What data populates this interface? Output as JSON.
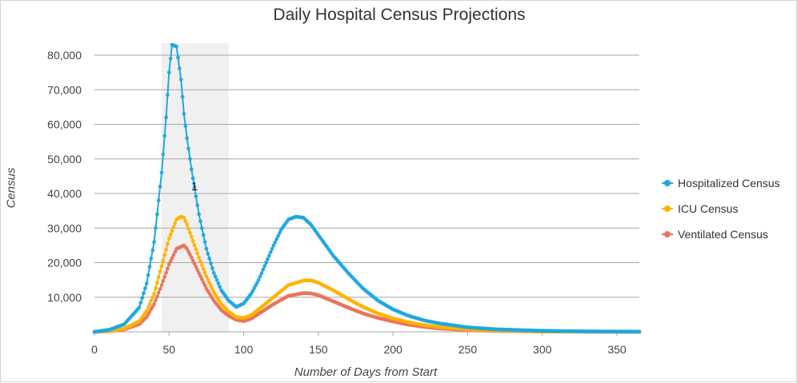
{
  "chart_data": {
    "type": "line",
    "title": "Daily Hospital Census Projections",
    "xlabel": "Number of Days from Start",
    "ylabel": "Census",
    "xlim": [
      0,
      365
    ],
    "ylim": [
      0,
      80000
    ],
    "x_ticks": [
      "0",
      "50",
      "100",
      "150",
      "200",
      "250",
      "300",
      "350"
    ],
    "y_ticks": [
      "10,000",
      "20,000",
      "30,000",
      "40,000",
      "50,000",
      "60,000",
      "70,000",
      "80,000"
    ],
    "grid": "horizontal",
    "legend_position": "right",
    "highlight": {
      "x_range": [
        45,
        90
      ],
      "label": "1"
    },
    "series": [
      {
        "name": "Hospitalized Census",
        "color": "#1ea7de",
        "x": [
          0,
          10,
          20,
          30,
          35,
          40,
          45,
          48,
          50,
          52,
          55,
          58,
          60,
          62,
          65,
          70,
          75,
          80,
          85,
          90,
          95,
          100,
          105,
          110,
          115,
          120,
          125,
          130,
          135,
          140,
          145,
          150,
          160,
          170,
          180,
          190,
          200,
          210,
          220,
          230,
          250,
          270,
          300,
          330,
          365
        ],
        "y": [
          0,
          600,
          2200,
          7000,
          14000,
          26000,
          46000,
          62000,
          75000,
          83000,
          82500,
          73000,
          63000,
          56000,
          47000,
          34000,
          24000,
          17000,
          12000,
          9000,
          7200,
          8200,
          11000,
          15000,
          20000,
          25000,
          29500,
          32500,
          33300,
          33000,
          31000,
          28000,
          22000,
          17000,
          12500,
          9000,
          6500,
          4700,
          3400,
          2500,
          1300,
          700,
          300,
          120,
          50
        ]
      },
      {
        "name": "ICU Census",
        "color": "#ffb300",
        "x": [
          0,
          10,
          20,
          30,
          35,
          40,
          45,
          50,
          55,
          58,
          60,
          62,
          65,
          70,
          75,
          80,
          85,
          90,
          95,
          100,
          105,
          110,
          120,
          130,
          140,
          145,
          150,
          160,
          170,
          180,
          190,
          200,
          210,
          220,
          230,
          250,
          270,
          300,
          330,
          365
        ],
        "y": [
          0,
          250,
          900,
          3000,
          6000,
          11000,
          19000,
          27000,
          32500,
          33300,
          33000,
          31000,
          27500,
          21500,
          16000,
          11500,
          8000,
          5800,
          4300,
          4000,
          4800,
          6500,
          10000,
          13500,
          14800,
          14900,
          14200,
          12000,
          9500,
          7200,
          5300,
          3900,
          2800,
          2000,
          1400,
          700,
          350,
          120,
          50,
          20
        ]
      },
      {
        "name": "Ventilated Census",
        "color": "#e8735a",
        "x": [
          0,
          10,
          20,
          30,
          35,
          40,
          45,
          50,
          55,
          60,
          62,
          65,
          70,
          75,
          80,
          85,
          90,
          95,
          100,
          105,
          110,
          120,
          130,
          140,
          145,
          150,
          160,
          170,
          180,
          190,
          200,
          210,
          220,
          230,
          250,
          270,
          300,
          330,
          365
        ],
        "y": [
          0,
          200,
          700,
          2200,
          4300,
          8000,
          13500,
          19500,
          24000,
          25000,
          24000,
          21500,
          17000,
          12500,
          9000,
          6300,
          4600,
          3500,
          3100,
          3800,
          5200,
          8000,
          10400,
          11200,
          11100,
          10600,
          8800,
          7000,
          5300,
          4000,
          3000,
          2100,
          1500,
          1000,
          500,
          250,
          90,
          40,
          15
        ]
      }
    ]
  }
}
